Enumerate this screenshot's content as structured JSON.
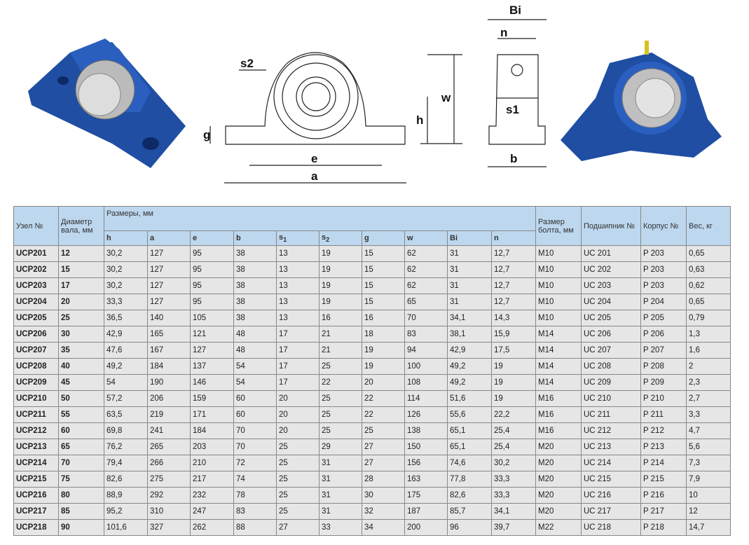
{
  "drawing_labels": {
    "s2": "s2",
    "g": "g",
    "e": "e",
    "a": "a",
    "h": "h",
    "w": "w",
    "bi": "Bi",
    "n": "n",
    "s1": "s1",
    "b": "b"
  },
  "table": {
    "headers": {
      "node": "Узел №",
      "diameter": "Диаметр вала, мм",
      "dims": "Размеры, мм",
      "bolt": "Размер болта, мм",
      "bearing": "Подшипник №",
      "housing": "Корпус №",
      "weight": "Вес, кг"
    },
    "dim_cols": [
      "h",
      "a",
      "e",
      "b",
      "s1",
      "s2",
      "g",
      "w",
      "Bi",
      "n"
    ],
    "rows": [
      [
        "UCP201",
        "12",
        "30,2",
        "127",
        "95",
        "38",
        "13",
        "19",
        "15",
        "62",
        "31",
        "12,7",
        "M10",
        "UC 201",
        "P 203",
        "0,65"
      ],
      [
        "UCP202",
        "15",
        "30,2",
        "127",
        "95",
        "38",
        "13",
        "19",
        "15",
        "62",
        "31",
        "12,7",
        "M10",
        "UC 202",
        "P 203",
        "0,63"
      ],
      [
        "UCP203",
        "17",
        "30,2",
        "127",
        "95",
        "38",
        "13",
        "19",
        "15",
        "62",
        "31",
        "12,7",
        "M10",
        "UC 203",
        "P 203",
        "0,62"
      ],
      [
        "UCP204",
        "20",
        "33,3",
        "127",
        "95",
        "38",
        "13",
        "19",
        "15",
        "65",
        "31",
        "12,7",
        "M10",
        "UC 204",
        "P 204",
        "0,65"
      ],
      [
        "UCP205",
        "25",
        "36,5",
        "140",
        "105",
        "38",
        "13",
        "16",
        "16",
        "70",
        "34,1",
        "14,3",
        "M10",
        "UC 205",
        "P 205",
        "0,79"
      ],
      [
        "UCP206",
        "30",
        "42,9",
        "165",
        "121",
        "48",
        "17",
        "21",
        "18",
        "83",
        "38,1",
        "15,9",
        "M14",
        "UC 206",
        "P 206",
        "1,3"
      ],
      [
        "UCP207",
        "35",
        "47,6",
        "167",
        "127",
        "48",
        "17",
        "21",
        "19",
        "94",
        "42,9",
        "17,5",
        "M14",
        "UC 207",
        "P 207",
        "1,6"
      ],
      [
        "UCP208",
        "40",
        "49,2",
        "184",
        "137",
        "54",
        "17",
        "25",
        "19",
        "100",
        "49,2",
        "19",
        "M14",
        "UC 208",
        "P 208",
        "2"
      ],
      [
        "UCP209",
        "45",
        "54",
        "190",
        "146",
        "54",
        "17",
        "22",
        "20",
        "108",
        "49,2",
        "19",
        "M14",
        "UC 209",
        "P 209",
        "2,3"
      ],
      [
        "UCP210",
        "50",
        "57,2",
        "206",
        "159",
        "60",
        "20",
        "25",
        "22",
        "114",
        "51,6",
        "19",
        "M16",
        "UC 210",
        "P 210",
        "2,7"
      ],
      [
        "UCP211",
        "55",
        "63,5",
        "219",
        "171",
        "60",
        "20",
        "25",
        "22",
        "126",
        "55,6",
        "22,2",
        "M16",
        "UC 211",
        "P 211",
        "3,3"
      ],
      [
        "UCP212",
        "60",
        "69,8",
        "241",
        "184",
        "70",
        "20",
        "25",
        "25",
        "138",
        "65,1",
        "25,4",
        "M16",
        "UC 212",
        "P 212",
        "4,7"
      ],
      [
        "UCP213",
        "65",
        "76,2",
        "265",
        "203",
        "70",
        "25",
        "29",
        "27",
        "150",
        "65,1",
        "25,4",
        "M20",
        "UC 213",
        "P 213",
        "5,6"
      ],
      [
        "UCP214",
        "70",
        "79,4",
        "266",
        "210",
        "72",
        "25",
        "31",
        "27",
        "156",
        "74,6",
        "30,2",
        "M20",
        "UC 214",
        "P 214",
        "7,3"
      ],
      [
        "UCP215",
        "75",
        "82,6",
        "275",
        "217",
        "74",
        "25",
        "31",
        "28",
        "163",
        "77,8",
        "33,3",
        "M20",
        "UC 215",
        "P 215",
        "7,9"
      ],
      [
        "UCP216",
        "80",
        "88,9",
        "292",
        "232",
        "78",
        "25",
        "31",
        "30",
        "175",
        "82,6",
        "33,3",
        "M20",
        "UC 216",
        "P 216",
        "10"
      ],
      [
        "UCP217",
        "85",
        "95,2",
        "310",
        "247",
        "83",
        "25",
        "31",
        "32",
        "187",
        "85,7",
        "34,1",
        "M20",
        "UC 217",
        "P 217",
        "12"
      ],
      [
        "UCP218",
        "90",
        "101,6",
        "327",
        "262",
        "88",
        "27",
        "33",
        "34",
        "200",
        "96",
        "39,7",
        "M22",
        "UC 218",
        "P 218",
        "14,7"
      ]
    ]
  },
  "colors": {
    "header_bg": "#bdd7ee",
    "cell_bg": "#e6e6e6",
    "housing_blue": "#1f4ea3"
  }
}
